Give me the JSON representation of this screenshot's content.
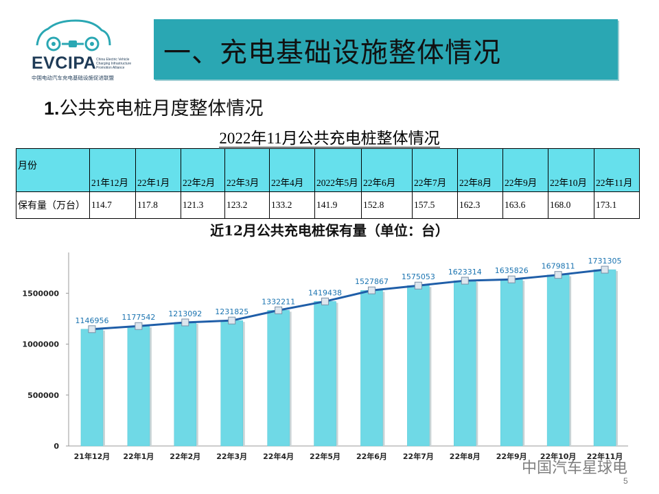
{
  "logo": {
    "brand": "EVCIPA",
    "tagline": "China Electric Vehicle Charging Infrastructure Promotion Alliance",
    "cn_name": "中国电动汽车充电基础设施促进联盟"
  },
  "banner_title": "一、充电基础设施整体情况",
  "subtitle_num": "1.",
  "subtitle_text": "公共充电桩月度整体情况",
  "table_title": "2022年11月公共充电桩整体情况",
  "table": {
    "header_label": "月份",
    "row_label": "保有量（万台）",
    "months": [
      "21年12月",
      "22年1月",
      "22年2月",
      "22年3月",
      "22年4月",
      "2022年5月",
      "22年6月",
      "22年7月",
      "22年8月",
      "22年9月",
      "22年10月",
      "22年11月"
    ],
    "values": [
      "114.7",
      "117.8",
      "121.3",
      "123.2",
      "133.2",
      "141.9",
      "152.8",
      "157.5",
      "162.3",
      "163.6",
      "168.0",
      "173.1"
    ]
  },
  "chart_data": {
    "type": "bar",
    "title": "近12月公共充电桩保有量（单位：台）",
    "categories": [
      "21年12月",
      "22年1月",
      "22年2月",
      "22年3月",
      "22年4月",
      "22年5月",
      "22年6月",
      "22年7月",
      "22年8月",
      "22年9月",
      "22年10月",
      "22年11月"
    ],
    "values": [
      1146956,
      1177542,
      1213092,
      1231825,
      1332211,
      1419438,
      1527867,
      1575053,
      1623314,
      1635826,
      1679811,
      1731305
    ],
    "overlay": "line",
    "ylim": [
      0,
      1900000
    ],
    "yticks": [
      0,
      500000,
      1000000,
      1500000
    ],
    "colors": {
      "bar": "#6fd9e6",
      "line": "#1f5ea8",
      "label": "#1a73b0"
    }
  },
  "watermark": "中国汽车星球电",
  "page_number": "5"
}
